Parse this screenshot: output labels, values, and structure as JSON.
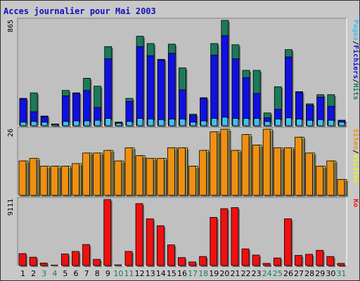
{
  "chart_data": [
    {
      "type": "bar",
      "title": "Acces journalier pour Mai 2003",
      "ymax_label": "865",
      "right_label": {
        "parts": [
          "Pages",
          "/",
          "Fichiers",
          "/",
          "Hits"
        ]
      },
      "categories": [
        "1",
        "2",
        "3",
        "4",
        "5",
        "6",
        "7",
        "8",
        "9",
        "10",
        "11",
        "12",
        "13",
        "14",
        "15",
        "16",
        "17",
        "18",
        "19",
        "20",
        "21",
        "22",
        "23",
        "24",
        "25",
        "26",
        "27",
        "28",
        "29",
        "30",
        "31"
      ],
      "weekend_days": [
        "3",
        "4",
        "10",
        "11",
        "17",
        "18",
        "24",
        "25",
        "31"
      ],
      "series": [
        {
          "name": "Hits",
          "color": "#1a7a5a",
          "values": [
            225,
            270,
            80,
            15,
            290,
            270,
            390,
            325,
            650,
            30,
            225,
            735,
            675,
            545,
            670,
            475,
            95,
            230,
            675,
            865,
            665,
            455,
            455,
            105,
            320,
            625,
            280,
            180,
            255,
            255,
            45
          ]
        },
        {
          "name": "Fichiers",
          "color": "#1010e0",
          "values": [
            220,
            115,
            75,
            10,
            245,
            265,
            290,
            150,
            550,
            25,
            200,
            650,
            575,
            540,
            595,
            295,
            85,
            225,
            580,
            740,
            550,
            395,
            265,
            65,
            135,
            565,
            275,
            170,
            235,
            160,
            45
          ]
        },
        {
          "name": "Pages",
          "color": "#40c0f0",
          "values": [
            30,
            35,
            30,
            10,
            35,
            40,
            40,
            45,
            60,
            20,
            35,
            60,
            55,
            50,
            55,
            55,
            30,
            40,
            60,
            70,
            60,
            60,
            60,
            35,
            55,
            65,
            55,
            45,
            50,
            45,
            30
          ]
        }
      ]
    },
    {
      "type": "bar",
      "ymax_label": "26",
      "right_label": {
        "parts": [
          "Sites",
          "/",
          "Visites"
        ]
      },
      "categories": [
        "1",
        "2",
        "3",
        "4",
        "5",
        "6",
        "7",
        "8",
        "9",
        "10",
        "11",
        "12",
        "13",
        "14",
        "15",
        "16",
        "17",
        "18",
        "19",
        "20",
        "21",
        "22",
        "23",
        "24",
        "25",
        "26",
        "27",
        "28",
        "29",
        "30",
        "31"
      ],
      "series": [
        {
          "name": "Visites",
          "color": "#f0f020",
          "values": [
            13,
            14,
            11,
            11,
            11,
            12,
            16,
            16,
            17,
            13,
            18,
            15,
            14,
            14,
            18,
            18,
            11,
            17,
            24,
            25,
            17,
            23,
            19,
            25,
            18,
            18,
            22,
            16,
            11,
            13,
            6
          ]
        },
        {
          "name": "Sites",
          "color": "#f09010",
          "values": [
            13,
            14,
            11,
            11,
            11,
            12,
            16,
            16,
            17,
            13,
            18,
            15,
            14,
            14,
            18,
            18,
            11,
            17,
            24,
            25,
            17,
            23,
            19,
            25,
            18,
            18,
            22,
            16,
            11,
            13,
            6
          ]
        }
      ]
    },
    {
      "type": "bar",
      "ymax_label": "9111",
      "right_label": {
        "parts": [
          "Ko"
        ]
      },
      "categories": [
        "1",
        "2",
        "3",
        "4",
        "5",
        "6",
        "7",
        "8",
        "9",
        "10",
        "11",
        "12",
        "13",
        "14",
        "15",
        "16",
        "17",
        "18",
        "19",
        "20",
        "21",
        "22",
        "23",
        "24",
        "25",
        "26",
        "27",
        "28",
        "29",
        "30",
        "31"
      ],
      "series": [
        {
          "name": "Ko",
          "color": "#f01010",
          "values": [
            1650,
            1150,
            350,
            60,
            1600,
            1950,
            2900,
            860,
            9111,
            90,
            1950,
            8550,
            6450,
            5500,
            2850,
            1100,
            500,
            1250,
            6650,
            7850,
            8000,
            2300,
            1450,
            300,
            1050,
            6450,
            1400,
            1550,
            2100,
            1250,
            300
          ]
        }
      ]
    }
  ]
}
